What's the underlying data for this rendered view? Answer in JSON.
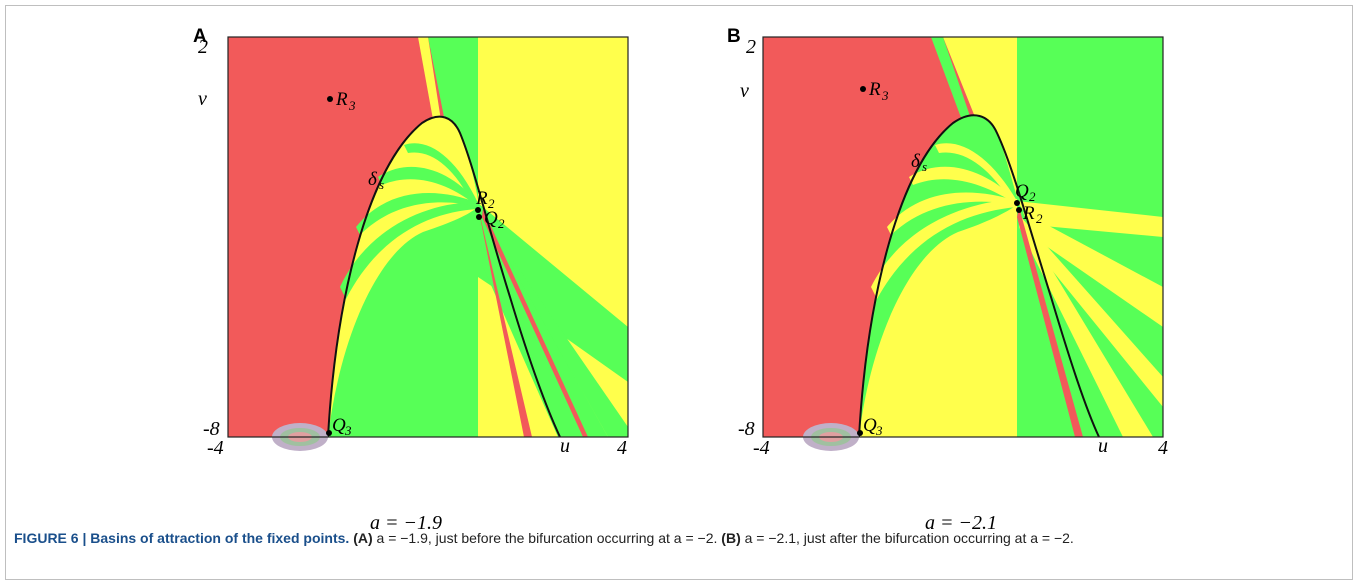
{
  "colors": {
    "red": "#f25a5a",
    "green": "#57ff57",
    "yellow": "#ffff4c",
    "boundary": "#111111"
  },
  "panels": [
    {
      "label": "A",
      "axis": {
        "u_min": "-4",
        "u_max": "4",
        "v_min": "-8",
        "v_max": "2",
        "u_label": "u",
        "v_label": "v"
      },
      "param_caption": "a = −1.9",
      "points": [
        {
          "name": "R",
          "sub": "3"
        },
        {
          "name": "δ",
          "sub": "s"
        },
        {
          "name": "R",
          "sub": "2"
        },
        {
          "name": "Q",
          "sub": "2"
        },
        {
          "name": "Q",
          "sub": "3"
        }
      ]
    },
    {
      "label": "B",
      "axis": {
        "u_min": "-4",
        "u_max": "4",
        "v_min": "-8",
        "v_max": "2",
        "u_label": "u",
        "v_label": "v"
      },
      "param_caption": "a = −2.1",
      "points": [
        {
          "name": "R",
          "sub": "3"
        },
        {
          "name": "δ",
          "sub": "s"
        },
        {
          "name": "Q",
          "sub": "2"
        },
        {
          "name": "R",
          "sub": "2"
        },
        {
          "name": "Q",
          "sub": "3"
        }
      ]
    }
  ],
  "caption": {
    "title": "FIGURE 6 | Basins of attraction of the fixed points.",
    "part_a_tag": "(A)",
    "part_a_text": " a = −1.9, just before the bifurcation occurring at a = −2. ",
    "part_b_tag": "(B)",
    "part_b_text": " a = −2.1, just after the bifurcation occurring at a = −2."
  }
}
